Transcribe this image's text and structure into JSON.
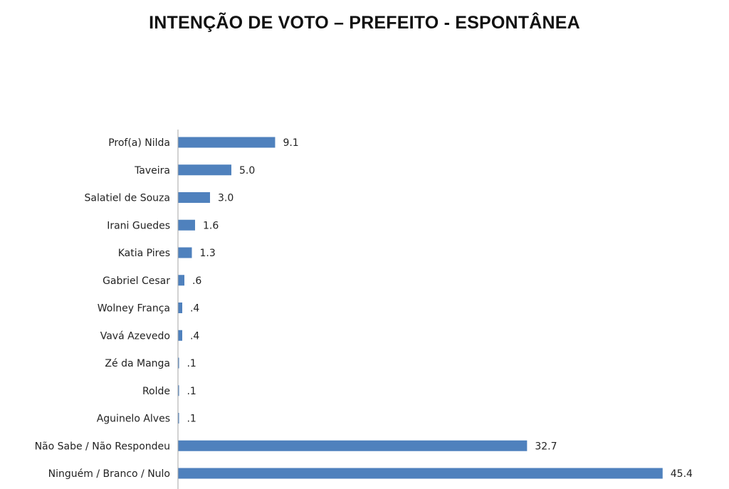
{
  "chart_data": {
    "type": "bar",
    "orientation": "horizontal",
    "title": "INTENÇÃO DE VOTO – PREFEITO - ESPONTÂNEA",
    "categories": [
      "Prof(a) Nilda",
      "Taveira",
      "Salatiel de Souza",
      "Irani Guedes",
      "Katia Pires",
      "Gabriel Cesar",
      "Wolney França",
      "Vavá Azevedo",
      "Zé da Manga",
      "Rolde",
      "Aguinelo Alves",
      "Não Sabe / Não Respondeu",
      "Ninguém / Branco / Nulo"
    ],
    "values": [
      9.1,
      5.0,
      3.0,
      1.6,
      1.3,
      0.6,
      0.4,
      0.4,
      0.1,
      0.1,
      0.1,
      32.7,
      45.4
    ],
    "value_labels": [
      "9.1",
      "5.0",
      "3.0",
      "1.6",
      "1.3",
      ".6",
      ".4",
      ".4",
      ".1",
      ".1",
      ".1",
      "32.7",
      "45.4"
    ],
    "xlabel": "",
    "ylabel": "",
    "xlim": [
      0,
      46
    ],
    "grid": false,
    "legend": "none",
    "bar_color": "#4f81bd"
  }
}
